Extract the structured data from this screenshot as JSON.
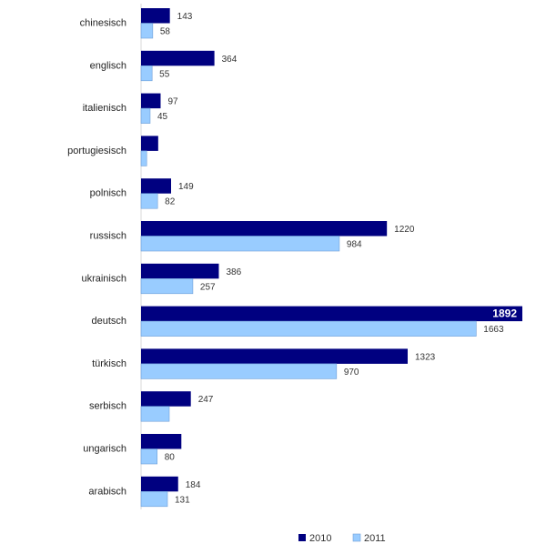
{
  "chart_data": {
    "type": "bar",
    "orientation": "horizontal",
    "categories": [
      "chinesisch",
      "englisch",
      "italienisch",
      "portugiesisch",
      "polnisch",
      "russisch",
      "ukrainisch",
      "deutsch",
      "türkisch",
      "serbisch",
      "ungarisch",
      "arabisch"
    ],
    "series": [
      {
        "name": "2010",
        "color": "#000080",
        "values": [
          143,
          364,
          97,
          85,
          149,
          1220,
          386,
          1892,
          1323,
          247,
          200,
          184
        ]
      },
      {
        "name": "2011",
        "color": "#99ccff",
        "values": [
          58,
          55,
          45,
          28,
          82,
          984,
          257,
          1663,
          970,
          140,
          80,
          131
        ]
      }
    ],
    "data_labels_visible": [
      [
        "143",
        "58"
      ],
      [
        "364",
        "55"
      ],
      [
        "97",
        "45"
      ],
      [
        "",
        ""
      ],
      [
        "149",
        "82"
      ],
      [
        "1220",
        "984"
      ],
      [
        "386",
        "257"
      ],
      [
        "1892",
        "1663"
      ],
      [
        "1323",
        "970"
      ],
      [
        "247",
        ""
      ],
      [
        "",
        "80"
      ],
      [
        "184",
        "131"
      ]
    ],
    "xlim": [
      0,
      1892
    ],
    "grid": false,
    "legend_position": "bottom",
    "title": "",
    "xlabel": "",
    "ylabel": ""
  }
}
